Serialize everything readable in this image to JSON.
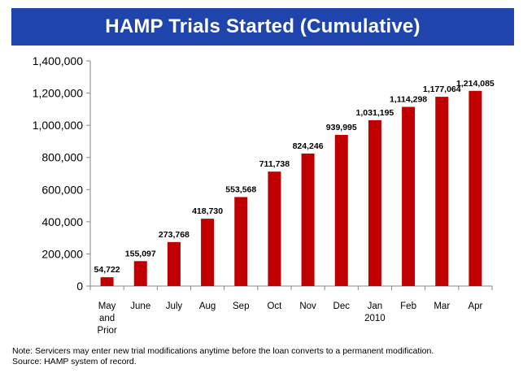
{
  "chart_data": {
    "type": "bar",
    "title": "HAMP Trials Started (Cumulative)",
    "categories": [
      [
        "May",
        "and",
        "Prior"
      ],
      [
        "June"
      ],
      [
        "July"
      ],
      [
        "Aug"
      ],
      [
        "Sep"
      ],
      [
        "Oct"
      ],
      [
        "Nov"
      ],
      [
        "Dec"
      ],
      [
        "Jan",
        "2010"
      ],
      [
        "Feb"
      ],
      [
        "Mar"
      ],
      [
        "Apr"
      ]
    ],
    "values": [
      54722,
      155097,
      273768,
      418730,
      553568,
      711738,
      824246,
      939995,
      1031195,
      1114298,
      1177064,
      1214085
    ],
    "data_labels": [
      "54,722",
      "155,097",
      "273,768",
      "418,730",
      "553,568",
      "711,738",
      "824,246",
      "939,995",
      "1,031,195",
      "1,114,298",
      "1,177,064",
      "1,214,085"
    ],
    "ylim": [
      0,
      1400000
    ],
    "yticks": [
      0,
      200000,
      400000,
      600000,
      800000,
      1000000,
      1200000,
      1400000
    ],
    "ytick_labels": [
      "0",
      "200,000",
      "400,000",
      "600,000",
      "800,000",
      "1,000,000",
      "1,200,000",
      "1,400,000"
    ],
    "xlabel": "",
    "ylabel": "",
    "grid": false,
    "bar_color": "#c00000"
  },
  "notes": {
    "line1": "Note: Servicers may enter new trial modifications anytime before the loan converts to a permanent modification.",
    "line2": "Source: HAMP system of record."
  },
  "colors": {
    "title_bg": "#1f45ad",
    "title_text": "#ffffff"
  }
}
